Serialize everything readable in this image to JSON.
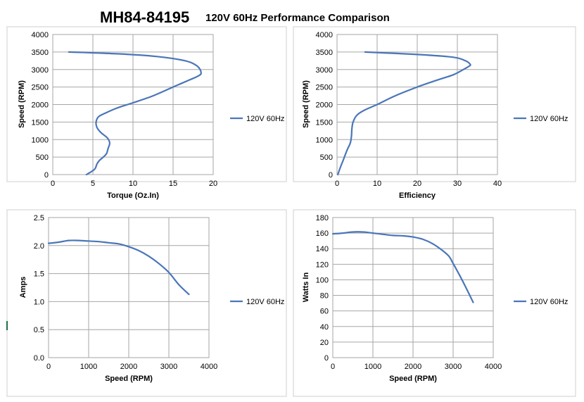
{
  "header": {
    "model": "MH84-84195",
    "subtitle": "120V 60Hz Performance Comparison"
  },
  "series_color": "#4a76b8",
  "chart_data": [
    {
      "type": "line",
      "xlabel": "Torque (Oz.In)",
      "ylabel": "Speed (RPM)",
      "xlim": [
        0,
        20
      ],
      "ylim": [
        0,
        4000
      ],
      "xticks": [
        "0",
        "5",
        "10",
        "15",
        "20"
      ],
      "yticks": [
        "0",
        "500",
        "1000",
        "1500",
        "2000",
        "2500",
        "3000",
        "3500",
        "4000"
      ],
      "grid": true,
      "legend": "right",
      "series": [
        {
          "name": "120V 60Hz",
          "x": [
            4.2,
            5.2,
            5.5,
            5.8,
            6.3,
            6.7,
            6.9,
            7.1,
            6.8,
            6.0,
            5.5,
            5.4,
            5.7,
            6.5,
            8.0,
            10.0,
            12.5,
            15.0,
            17.0,
            18.0,
            18.5,
            18.0,
            16.5,
            13.0,
            8.0,
            2.0
          ],
          "y": [
            0,
            150,
            300,
            400,
            500,
            600,
            750,
            900,
            1050,
            1200,
            1350,
            1500,
            1650,
            1750,
            1900,
            2050,
            2250,
            2500,
            2700,
            2800,
            2900,
            3100,
            3250,
            3370,
            3450,
            3500
          ]
        }
      ]
    },
    {
      "type": "line",
      "xlabel": "Efficiency",
      "ylabel": "Speed (RPM)",
      "xlim": [
        0,
        40
      ],
      "ylim": [
        0,
        4000
      ],
      "xticks": [
        "0",
        "10",
        "20",
        "30",
        "40"
      ],
      "yticks": [
        "0",
        "500",
        "1000",
        "1500",
        "2000",
        "2500",
        "3000",
        "3500",
        "4000"
      ],
      "grid": true,
      "legend": "right",
      "series": [
        {
          "name": "120V 60Hz",
          "x": [
            0.2,
            0.8,
            1.5,
            2.5,
            3.3,
            3.6,
            3.7,
            4.0,
            5.0,
            7.0,
            10.0,
            14.5,
            20.0,
            25.0,
            29.0,
            31.5,
            33.0,
            33.2,
            32.0,
            29.0,
            20.0,
            7.0
          ],
          "y": [
            0,
            200,
            400,
            700,
            900,
            1100,
            1300,
            1500,
            1700,
            1850,
            2000,
            2250,
            2500,
            2700,
            2850,
            3000,
            3100,
            3150,
            3250,
            3350,
            3430,
            3500
          ]
        }
      ]
    },
    {
      "type": "line",
      "xlabel": "Speed (RPM)",
      "ylabel": "Amps",
      "xlim": [
        0,
        4000
      ],
      "ylim": [
        0,
        2.5
      ],
      "xticks": [
        "0",
        "1000",
        "2000",
        "3000",
        "4000"
      ],
      "yticks": [
        "0.0",
        "0.5",
        "1.0",
        "1.5",
        "2.0",
        "2.5"
      ],
      "grid": true,
      "legend": "right",
      "series": [
        {
          "name": "120V 60Hz",
          "x": [
            0,
            250,
            500,
            750,
            1000,
            1250,
            1500,
            1750,
            2000,
            2250,
            2500,
            2750,
            3000,
            3250,
            3500
          ],
          "y": [
            2.04,
            2.06,
            2.09,
            2.09,
            2.08,
            2.07,
            2.05,
            2.03,
            1.98,
            1.91,
            1.81,
            1.68,
            1.52,
            1.3,
            1.13
          ]
        }
      ]
    },
    {
      "type": "line",
      "xlabel": "Speed (RPM)",
      "ylabel": "Watts In",
      "xlim": [
        0,
        4000
      ],
      "ylim": [
        0,
        180
      ],
      "xticks": [
        "0",
        "1000",
        "2000",
        "3000",
        "4000"
      ],
      "yticks": [
        "0",
        "20",
        "40",
        "60",
        "80",
        "100",
        "120",
        "140",
        "160",
        "180"
      ],
      "grid": true,
      "legend": "right",
      "series": [
        {
          "name": "120V 60Hz",
          "x": [
            0,
            250,
            500,
            750,
            1000,
            1250,
            1500,
            1750,
            2000,
            2250,
            2500,
            2750,
            2900,
            3000,
            3150,
            3300,
            3500
          ],
          "y": [
            159,
            160,
            161.5,
            161.5,
            160,
            158.5,
            157,
            156.5,
            155,
            152,
            146,
            137,
            130,
            121,
            107,
            92,
            71
          ]
        }
      ]
    }
  ]
}
